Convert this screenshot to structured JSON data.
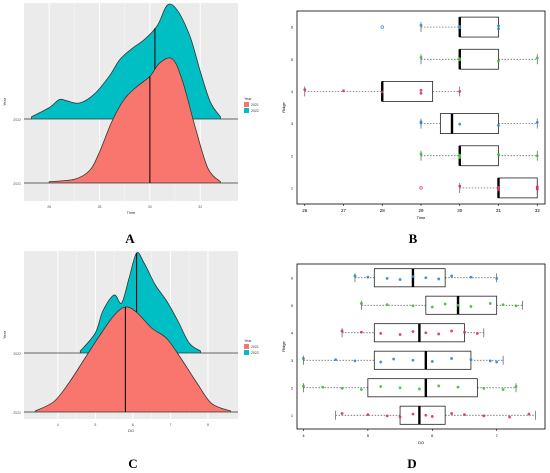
{
  "captions": {
    "a": "A",
    "b": "B",
    "c": "C",
    "d": "D"
  },
  "colors": {
    "y2021": "#F8766D",
    "y2022": "#00BFC4",
    "blue": "#2E86DE",
    "green": "#3CC03C",
    "red": "#E0305A",
    "grid": "#ebebeb",
    "bg": "#ebebeb"
  },
  "chart_data": [
    {
      "panel": "A",
      "type": "area",
      "subtype": "ridgeline-density",
      "xlabel": "Time",
      "ylabel": "Year",
      "xticks": [
        "26",
        "28",
        "30",
        "32"
      ],
      "yticks": [
        "2021",
        "2022"
      ],
      "xlim": [
        25,
        33.5
      ],
      "legend": {
        "title": "Year",
        "position": "right",
        "entries": [
          "2021",
          "2022"
        ]
      },
      "series": [
        {
          "name": "2022",
          "color": "#00BFC4",
          "median": 30.2,
          "x": [
            25.3,
            26.0,
            26.4,
            26.7,
            27.2,
            27.8,
            28.4,
            28.8,
            29.3,
            29.8,
            30.3,
            30.7,
            31.1,
            31.6,
            32.0,
            32.4,
            32.8
          ],
          "density": [
            0.02,
            0.1,
            0.17,
            0.16,
            0.14,
            0.22,
            0.38,
            0.52,
            0.62,
            0.7,
            0.82,
            1.0,
            0.95,
            0.72,
            0.42,
            0.15,
            0.02
          ]
        },
        {
          "name": "2021",
          "color": "#F8766D",
          "median": 30.0,
          "x": [
            26.0,
            27.0,
            27.6,
            28.0,
            28.5,
            29.0,
            29.5,
            30.0,
            30.4,
            30.9,
            31.3,
            31.8,
            32.3,
            32.8
          ],
          "density": [
            0.01,
            0.03,
            0.1,
            0.25,
            0.5,
            0.68,
            0.78,
            0.86,
            0.97,
            1.0,
            0.82,
            0.45,
            0.12,
            0.01
          ]
        }
      ]
    },
    {
      "panel": "B",
      "type": "scatter",
      "subtype": "horizontal-boxplot-with-jitter",
      "xlabel": "Time",
      "ylabel": "Ridge",
      "xlim": [
        25.8,
        32.2
      ],
      "xticks": [
        "26",
        "27",
        "28",
        "29",
        "30",
        "31",
        "32"
      ],
      "categories": [
        "1",
        "2",
        "3",
        "4",
        "5",
        "6"
      ],
      "boxes": [
        {
          "category": "1",
          "min": 30,
          "q1": 31,
          "median": 31,
          "q3": 32,
          "max": 32,
          "color": "#E0305A",
          "outliers": [
            29
          ],
          "points": [
            30,
            31,
            31,
            31,
            32,
            32,
            32
          ]
        },
        {
          "category": "2",
          "min": 29,
          "q1": 30,
          "median": 30,
          "q3": 31,
          "max": 32,
          "color": "#3CC03C",
          "outliers": [],
          "points": [
            29,
            30,
            30,
            30,
            31,
            32
          ]
        },
        {
          "category": "3",
          "min": 29,
          "q1": 29.5,
          "median": 29.8,
          "q3": 31,
          "max": 32,
          "color": "#2E86DE",
          "outliers": [],
          "points": [
            29,
            29,
            30,
            31,
            32
          ]
        },
        {
          "category": "4",
          "min": 26,
          "q1": 28,
          "median": 28,
          "q3": 29.3,
          "max": 30,
          "color": "#E0305A",
          "outliers": [],
          "points": [
            26,
            27,
            28,
            29,
            29,
            30
          ]
        },
        {
          "category": "5",
          "min": 29,
          "q1": 30,
          "median": 30,
          "q3": 31,
          "max": 32,
          "color": "#3CC03C",
          "outliers": [],
          "points": [
            29,
            30,
            30,
            31,
            32
          ]
        },
        {
          "category": "6",
          "min": 29,
          "q1": 30,
          "median": 30,
          "q3": 31,
          "max": 31,
          "color": "#2E86DE",
          "outliers": [
            28
          ],
          "points": [
            29,
            30,
            30,
            31,
            31
          ]
        }
      ]
    },
    {
      "panel": "C",
      "type": "area",
      "subtype": "ridgeline-density",
      "xlabel": "DO",
      "ylabel": "Year",
      "xticks": [
        "4",
        "5",
        "6",
        "7",
        "8"
      ],
      "yticks": [
        "2021",
        "2022"
      ],
      "xlim": [
        3.1,
        8.8
      ],
      "legend": {
        "title": "Year",
        "position": "right",
        "entries": [
          "2021",
          "2022"
        ]
      },
      "series": [
        {
          "name": "2022",
          "color": "#00BFC4",
          "median": 6.1,
          "x": [
            4.6,
            5.0,
            5.2,
            5.5,
            5.7,
            5.9,
            6.1,
            6.3,
            6.6,
            6.9,
            7.2,
            7.5,
            7.8
          ],
          "density": [
            0.02,
            0.2,
            0.42,
            0.58,
            0.5,
            0.75,
            1.0,
            0.9,
            0.68,
            0.52,
            0.32,
            0.1,
            0.02
          ]
        },
        {
          "name": "2021",
          "color": "#F8766D",
          "median": 5.8,
          "x": [
            3.4,
            3.9,
            4.3,
            4.7,
            5.1,
            5.5,
            5.8,
            6.1,
            6.5,
            6.9,
            7.3,
            7.7,
            8.1,
            8.6
          ],
          "density": [
            0.01,
            0.1,
            0.28,
            0.5,
            0.72,
            0.92,
            1.0,
            0.95,
            0.8,
            0.7,
            0.5,
            0.28,
            0.08,
            0.01
          ]
        }
      ]
    },
    {
      "panel": "D",
      "type": "scatter",
      "subtype": "horizontal-boxplot-with-jitter",
      "xlabel": "DO",
      "ylabel": "Ridge",
      "xlim": [
        3.9,
        7.75
      ],
      "xticks": [
        "4",
        "5",
        "6",
        "7"
      ],
      "categories": [
        "1",
        "2",
        "3",
        "4",
        "5",
        "6"
      ],
      "boxes": [
        {
          "category": "1",
          "min": 4.5,
          "q1": 5.5,
          "median": 5.8,
          "q3": 6.2,
          "max": 7.6,
          "color": "#E0305A",
          "outliers": [],
          "points": [
            4.6,
            5.0,
            5.3,
            5.5,
            5.7,
            5.9,
            6.0,
            6.3,
            6.5,
            6.8,
            7.2,
            7.5
          ]
        },
        {
          "category": "2",
          "min": 4.0,
          "q1": 5.0,
          "median": 5.9,
          "q3": 6.7,
          "max": 7.3,
          "color": "#3CC03C",
          "outliers": [],
          "points": [
            4.0,
            4.3,
            4.6,
            4.9,
            5.2,
            5.5,
            5.8,
            6.1,
            6.4,
            6.8,
            7.1,
            7.3
          ]
        },
        {
          "category": "3",
          "min": 4.0,
          "q1": 5.1,
          "median": 5.9,
          "q3": 6.6,
          "max": 7.1,
          "color": "#2E86DE",
          "outliers": [],
          "points": [
            4.0,
            4.5,
            4.8,
            5.2,
            5.4,
            5.7,
            6.0,
            6.3,
            6.6,
            6.9,
            7.0
          ]
        },
        {
          "category": "4",
          "min": 4.6,
          "q1": 5.1,
          "median": 5.8,
          "q3": 6.5,
          "max": 6.8,
          "color": "#E0305A",
          "outliers": [],
          "points": [
            4.6,
            4.9,
            5.2,
            5.5,
            5.7,
            5.9,
            6.1,
            6.3,
            6.5,
            6.7
          ]
        },
        {
          "category": "5",
          "min": 4.9,
          "q1": 5.9,
          "median": 6.4,
          "q3": 7.0,
          "max": 7.4,
          "color": "#3CC03C",
          "outliers": [],
          "points": [
            4.9,
            5.3,
            5.7,
            6.0,
            6.2,
            6.4,
            6.6,
            6.9,
            7.1,
            7.3
          ]
        },
        {
          "category": "6",
          "min": 4.8,
          "q1": 5.1,
          "median": 5.7,
          "q3": 6.2,
          "max": 7.0,
          "color": "#2E86DE",
          "outliers": [],
          "points": [
            4.8,
            5.0,
            5.3,
            5.5,
            5.7,
            5.9,
            6.1,
            6.3,
            6.6,
            7.0
          ]
        }
      ]
    }
  ]
}
